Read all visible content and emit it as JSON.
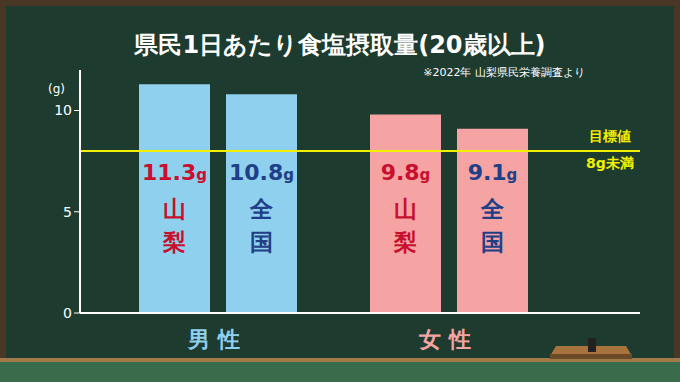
{
  "chart_data": {
    "type": "bar",
    "title": "県民1日あたり食塩摂取量(20歳以上)",
    "subtitle": "※2022年 山梨県民栄養調査より",
    "y_label": "(g)",
    "categories": [
      "男性",
      "女性"
    ],
    "colors": [
      "#8fd0ee",
      "#f5a3a3"
    ],
    "series": [
      {
        "name": "山梨",
        "color": "#c8102e",
        "values": [
          11.3,
          9.8
        ],
        "value_labels": [
          "11.3g",
          "9.8g"
        ]
      },
      {
        "name": "全国",
        "color": "#1f3f86",
        "values": [
          10.8,
          9.1
        ],
        "value_labels": [
          "10.8g",
          "9.1g"
        ]
      }
    ],
    "ylim": [
      0,
      12
    ],
    "yticks": [
      0,
      5,
      10
    ],
    "grid": false,
    "data_labels": true,
    "reference_line": {
      "value": 8,
      "color": "#f2f000",
      "label_lines": [
        "目標値",
        "8g未満"
      ]
    }
  }
}
